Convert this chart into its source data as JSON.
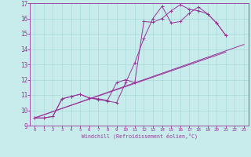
{
  "bg_color": "#c8ecec",
  "grid_color": "#a8d8d8",
  "line_color": "#993399",
  "xlim": [
    -0.5,
    23.5
  ],
  "ylim": [
    9,
    17
  ],
  "xticks": [
    0,
    1,
    2,
    3,
    4,
    5,
    6,
    7,
    8,
    9,
    10,
    11,
    12,
    13,
    14,
    15,
    16,
    17,
    18,
    19,
    20,
    21,
    22,
    23
  ],
  "yticks": [
    9,
    10,
    11,
    12,
    13,
    14,
    15,
    16,
    17
  ],
  "xlabel": "Windchill (Refroidissement éolien,°C)",
  "line1_x": [
    0,
    1,
    2,
    3,
    4,
    5,
    6,
    7,
    8,
    9,
    10,
    11,
    12,
    13,
    14,
    15,
    16,
    17,
    18,
    19,
    20,
    21
  ],
  "line1_y": [
    9.5,
    9.5,
    9.6,
    10.75,
    10.9,
    11.05,
    10.8,
    10.7,
    10.6,
    10.5,
    11.8,
    13.1,
    14.7,
    16.0,
    16.8,
    15.7,
    15.8,
    16.35,
    16.75,
    16.3,
    15.7,
    14.9
  ],
  "line2_x": [
    0,
    1,
    2,
    3,
    4,
    5,
    6,
    7,
    8,
    9,
    10,
    11,
    12,
    13,
    14,
    15,
    16,
    17,
    18,
    19,
    20,
    21
  ],
  "line2_y": [
    9.5,
    9.5,
    9.6,
    10.75,
    10.9,
    11.05,
    10.8,
    10.75,
    10.65,
    11.8,
    12.0,
    11.8,
    15.8,
    15.75,
    16.0,
    16.5,
    16.9,
    16.6,
    16.5,
    16.3,
    15.7,
    14.9
  ],
  "line3_x": [
    0,
    21
  ],
  "line3_y": [
    9.5,
    13.8
  ],
  "line4_x": [
    0,
    23
  ],
  "line4_y": [
    9.5,
    14.3
  ]
}
